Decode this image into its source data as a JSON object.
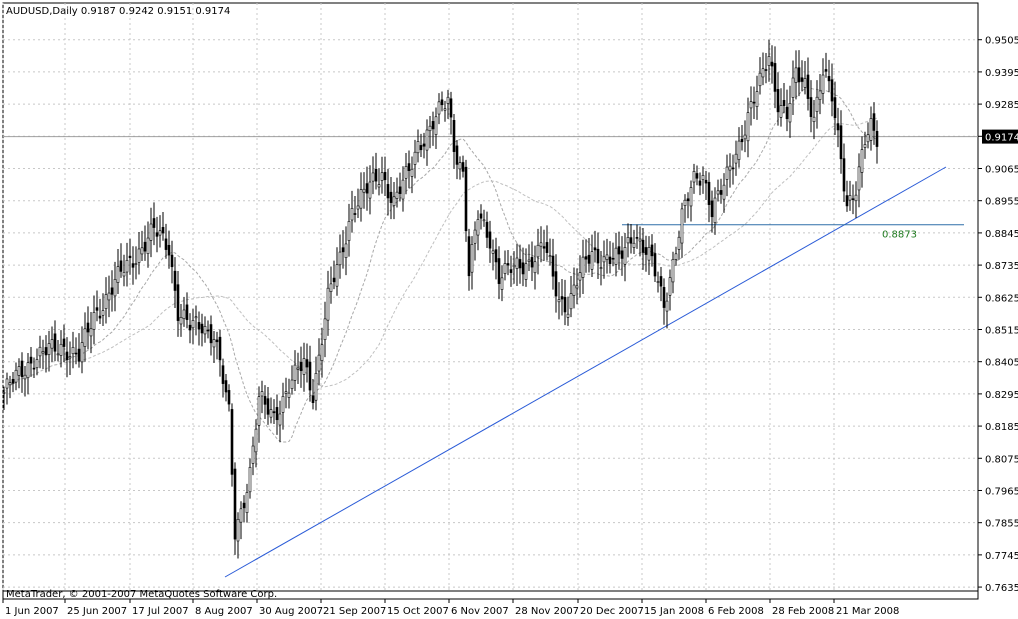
{
  "chart_data": {
    "type": "candlestick",
    "header": "AUDUSD,Daily  0.9187 0.9242 0.9151 0.9174",
    "copyright": "MetaTrader, © 2001-2007 MetaQuotes Software Corp.",
    "y_axis_ticks": [
      "0.9505",
      "0.9395",
      "0.9285",
      "0.9175",
      "0.9065",
      "0.8955",
      "0.8845",
      "0.8735",
      "0.8625",
      "0.8515",
      "0.8405",
      "0.8295",
      "0.8185",
      "0.8075",
      "0.7965",
      "0.7855",
      "0.7745",
      "0.7635"
    ],
    "ylim": [
      0.7625,
      0.9545
    ],
    "x_axis_ticks": [
      "1 Jun 2007",
      "25 Jun 2007",
      "17 Jul 2007",
      "8 Aug 2007",
      "30 Aug 2007",
      "21 Sep 2007",
      "15 Oct 2007",
      "6 Nov 2007",
      "28 Nov 2007",
      "20 Dec 2007",
      "15 Jan 2008",
      "6 Feb 2008",
      "28 Feb 2008",
      "21 Mar 2008"
    ],
    "current_price": "0.9174",
    "horizontal_line_label": "0.8873",
    "horizontal_line_value": 0.8873,
    "close_keypoints": [
      [
        0,
        0.83
      ],
      [
        10,
        0.842
      ],
      [
        20,
        0.846
      ],
      [
        25,
        0.842
      ],
      [
        30,
        0.856
      ],
      [
        40,
        0.872
      ],
      [
        50,
        0.885
      ],
      [
        55,
        0.88
      ],
      [
        58,
        0.858
      ],
      [
        62,
        0.852
      ],
      [
        66,
        0.853
      ],
      [
        70,
        0.85
      ],
      [
        72,
        0.84
      ],
      [
        75,
        0.822
      ],
      [
        77,
        0.782
      ],
      [
        79,
        0.79
      ],
      [
        82,
        0.803
      ],
      [
        85,
        0.827
      ],
      [
        90,
        0.822
      ],
      [
        95,
        0.832
      ],
      [
        100,
        0.84
      ],
      [
        103,
        0.83
      ],
      [
        108,
        0.862
      ],
      [
        112,
        0.875
      ],
      [
        116,
        0.893
      ],
      [
        122,
        0.9
      ],
      [
        126,
        0.905
      ],
      [
        130,
        0.895
      ],
      [
        135,
        0.905
      ],
      [
        138,
        0.915
      ],
      [
        142,
        0.92
      ],
      [
        145,
        0.925
      ],
      [
        148,
        0.93
      ],
      [
        150,
        0.915
      ],
      [
        153,
        0.905
      ],
      [
        155,
        0.87
      ],
      [
        158,
        0.89
      ],
      [
        162,
        0.883
      ],
      [
        165,
        0.87
      ],
      [
        170,
        0.872
      ],
      [
        175,
        0.875
      ],
      [
        180,
        0.88
      ],
      [
        185,
        0.862
      ],
      [
        188,
        0.86
      ],
      [
        192,
        0.87
      ],
      [
        196,
        0.878
      ],
      [
        200,
        0.876
      ],
      [
        205,
        0.875
      ],
      [
        210,
        0.885
      ],
      [
        213,
        0.88
      ],
      [
        216,
        0.874
      ],
      [
        220,
        0.86
      ],
      [
        223,
        0.875
      ],
      [
        226,
        0.89
      ],
      [
        230,
        0.902
      ],
      [
        233,
        0.905
      ],
      [
        236,
        0.893
      ],
      [
        240,
        0.9
      ],
      [
        245,
        0.915
      ],
      [
        248,
        0.925
      ],
      [
        252,
        0.935
      ],
      [
        255,
        0.945
      ],
      [
        258,
        0.93
      ],
      [
        261,
        0.925
      ],
      [
        264,
        0.938
      ],
      [
        267,
        0.935
      ],
      [
        270,
        0.925
      ],
      [
        273,
        0.94
      ],
      [
        276,
        0.93
      ],
      [
        279,
        0.91
      ],
      [
        281,
        0.895
      ],
      [
        284,
        0.9
      ],
      [
        287,
        0.915
      ],
      [
        289,
        0.92
      ],
      [
        291,
        0.917
      ]
    ]
  }
}
